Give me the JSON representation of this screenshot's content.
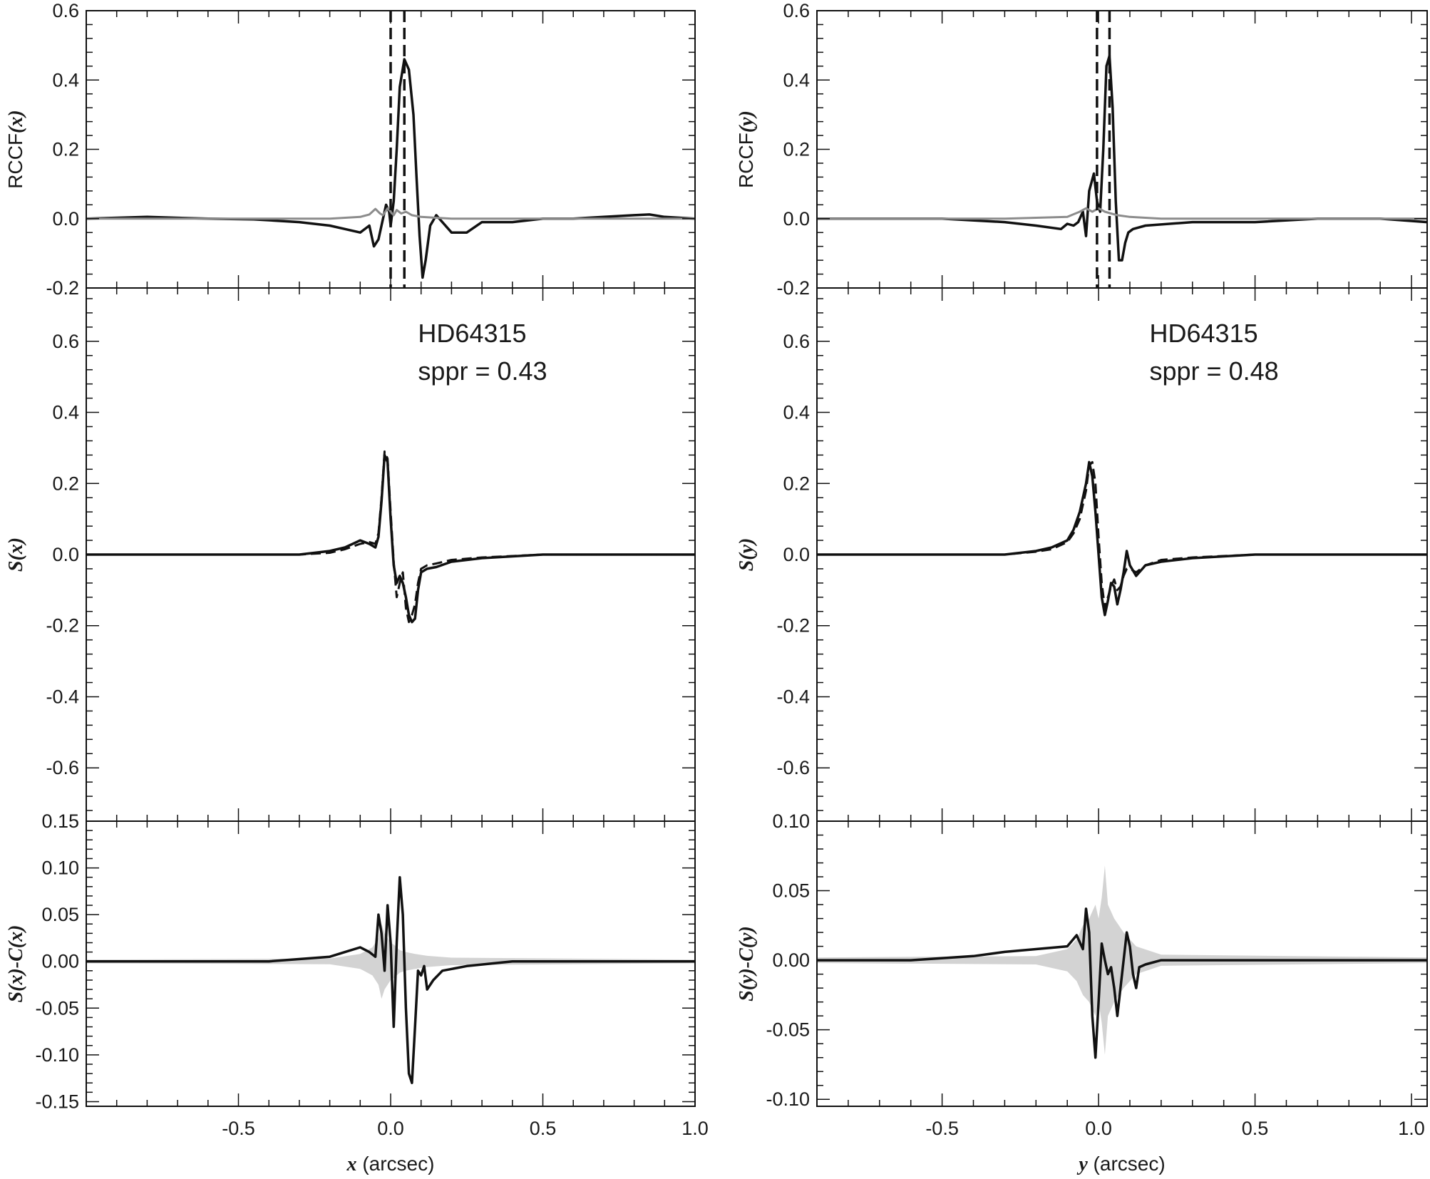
{
  "chart_data": [
    {
      "type": "line",
      "panel": "left-top",
      "ylabel": "RCCF(x)",
      "xlim": [
        -1.0,
        1.0
      ],
      "ylim": [
        -0.2,
        0.6
      ],
      "yticks": [
        -0.2,
        0.0,
        0.2,
        0.4,
        0.6
      ],
      "ytick_labels": [
        "-0.2",
        "0.0",
        "0.2",
        "0.4",
        "0.6"
      ],
      "grid": false,
      "series": [
        {
          "style": "solid-black",
          "x": [
            -1.0,
            -0.8,
            -0.6,
            -0.45,
            -0.3,
            -0.2,
            -0.15,
            -0.1,
            -0.07,
            -0.055,
            -0.04,
            -0.025,
            -0.015,
            -0.005,
            0.0,
            0.01,
            0.02,
            0.03,
            0.045,
            0.06,
            0.075,
            0.085,
            0.095,
            0.105,
            0.115,
            0.13,
            0.15,
            0.2,
            0.25,
            0.3,
            0.4,
            0.5,
            0.6,
            0.7,
            0.8,
            0.85,
            0.9,
            1.0
          ],
          "y": [
            0.0,
            0.005,
            0.0,
            -0.002,
            -0.01,
            -0.02,
            -0.03,
            -0.04,
            -0.02,
            -0.08,
            -0.06,
            0.0,
            0.04,
            0.02,
            -0.02,
            0.05,
            0.2,
            0.38,
            0.46,
            0.43,
            0.3,
            0.12,
            -0.05,
            -0.17,
            -0.12,
            -0.02,
            0.01,
            -0.04,
            -0.04,
            -0.01,
            -0.01,
            0.0,
            0.0,
            0.005,
            0.01,
            0.012,
            0.005,
            0.0
          ]
        },
        {
          "style": "solid-gray",
          "x": [
            -1.0,
            -0.5,
            -0.2,
            -0.1,
            -0.07,
            -0.05,
            -0.035,
            -0.025,
            -0.01,
            0.0,
            0.01,
            0.02,
            0.035,
            0.05,
            0.07,
            0.1,
            0.2,
            0.5,
            1.0
          ],
          "y": [
            0.0,
            0.0,
            0.0,
            0.005,
            0.012,
            0.028,
            0.015,
            0.01,
            0.03,
            0.02,
            0.01,
            0.025,
            0.015,
            0.02,
            0.01,
            0.005,
            0.0,
            0.0,
            0.0
          ]
        }
      ],
      "vlines": [
        0.0,
        0.045
      ]
    },
    {
      "type": "line",
      "panel": "left-middle",
      "ylabel": "S(x)",
      "xlim": [
        -1.0,
        1.0
      ],
      "ylim": [
        -0.75,
        0.75
      ],
      "yticks": [
        -0.6,
        -0.4,
        -0.2,
        0.0,
        0.2,
        0.4,
        0.6
      ],
      "ytick_labels": [
        "-0.6",
        "-0.4",
        "-0.2",
        "0.0",
        "0.2",
        "0.4",
        "0.6"
      ],
      "annotation": [
        "HD64315",
        "sppr = 0.43"
      ],
      "grid": false,
      "series": [
        {
          "style": "solid",
          "x": [
            -1.0,
            -0.5,
            -0.3,
            -0.2,
            -0.15,
            -0.1,
            -0.07,
            -0.05,
            -0.04,
            -0.03,
            -0.02,
            -0.01,
            0.0,
            0.01,
            0.02,
            0.03,
            0.04,
            0.05,
            0.06,
            0.07,
            0.08,
            0.09,
            0.1,
            0.12,
            0.15,
            0.2,
            0.3,
            0.5,
            1.0
          ],
          "y": [
            0.0,
            0.0,
            0.0,
            0.01,
            0.02,
            0.04,
            0.03,
            0.02,
            0.05,
            0.15,
            0.28,
            0.26,
            0.1,
            -0.03,
            -0.08,
            -0.06,
            -0.08,
            -0.12,
            -0.17,
            -0.19,
            -0.18,
            -0.1,
            -0.05,
            -0.04,
            -0.035,
            -0.02,
            -0.01,
            0.0,
            0.0
          ]
        },
        {
          "style": "dashed",
          "x": [
            -1.0,
            -0.5,
            -0.3,
            -0.2,
            -0.15,
            -0.1,
            -0.07,
            -0.05,
            -0.04,
            -0.03,
            -0.02,
            -0.01,
            0.0,
            0.01,
            0.02,
            0.03,
            0.04,
            0.05,
            0.06,
            0.07,
            0.08,
            0.09,
            0.1,
            0.12,
            0.15,
            0.2,
            0.3,
            0.5,
            1.0
          ],
          "y": [
            0.0,
            0.0,
            0.0,
            0.005,
            0.015,
            0.03,
            0.035,
            0.03,
            0.06,
            0.16,
            0.29,
            0.27,
            0.12,
            -0.02,
            -0.12,
            -0.08,
            -0.05,
            -0.15,
            -0.19,
            -0.17,
            -0.14,
            -0.08,
            -0.04,
            -0.03,
            -0.025,
            -0.015,
            -0.008,
            0.0,
            0.0
          ]
        }
      ]
    },
    {
      "type": "line",
      "panel": "left-bottom",
      "ylabel": "S(x)-C(x)",
      "xlim": [
        -1.0,
        1.0
      ],
      "ylim": [
        -0.155,
        0.15
      ],
      "yticks": [
        -0.15,
        -0.1,
        -0.05,
        0.0,
        0.05,
        0.1,
        0.15
      ],
      "ytick_labels": [
        "-0.15",
        "-0.10",
        "-0.05",
        "0.00",
        "0.05",
        "0.10",
        "0.15"
      ],
      "xticks": [
        -0.5,
        0.0,
        0.5,
        1.0
      ],
      "xtick_labels": [
        "-0.5",
        "0.0",
        "0.5",
        "1.0"
      ],
      "xlabel_var": "x",
      "xlabel_unit": "(arcsec)",
      "grid": false,
      "series": [
        {
          "style": "solid",
          "x": [
            -1.0,
            -0.6,
            -0.4,
            -0.2,
            -0.15,
            -0.1,
            -0.07,
            -0.05,
            -0.04,
            -0.03,
            -0.02,
            -0.01,
            0.0,
            0.01,
            0.02,
            0.03,
            0.04,
            0.05,
            0.06,
            0.07,
            0.08,
            0.09,
            0.1,
            0.11,
            0.12,
            0.14,
            0.17,
            0.25,
            0.4,
            0.6,
            0.8,
            1.0
          ],
          "y": [
            0.0,
            0.0,
            0.0,
            0.005,
            0.01,
            0.015,
            0.01,
            0.005,
            0.05,
            0.03,
            -0.01,
            0.06,
            0.02,
            -0.07,
            0.02,
            0.09,
            0.05,
            -0.05,
            -0.12,
            -0.13,
            -0.07,
            -0.01,
            -0.015,
            -0.005,
            -0.03,
            -0.02,
            -0.01,
            -0.005,
            0.0,
            0.0,
            0.0,
            0.0
          ]
        },
        {
          "style": "gray-band",
          "x": [
            -1.0,
            -0.2,
            -0.1,
            -0.06,
            -0.04,
            -0.03,
            -0.02,
            -0.01,
            0.0,
            0.01,
            0.02,
            0.03,
            0.05,
            0.08,
            0.12,
            0.2,
            1.0
          ],
          "y": [
            0.002,
            0.003,
            0.008,
            0.015,
            0.025,
            0.04,
            0.03,
            0.025,
            0.02,
            0.018,
            0.015,
            0.012,
            0.01,
            0.008,
            0.006,
            0.004,
            0.002
          ]
        }
      ]
    },
    {
      "type": "line",
      "panel": "right-top",
      "ylabel": "RCCF(y)",
      "xlim": [
        -0.9,
        1.05
      ],
      "ylim": [
        -0.2,
        0.6
      ],
      "yticks": [
        -0.2,
        0.0,
        0.2,
        0.4,
        0.6
      ],
      "ytick_labels": [
        "-0.2",
        "0.0",
        "0.2",
        "0.4",
        "0.6"
      ],
      "grid": false,
      "series": [
        {
          "style": "solid-black",
          "x": [
            -0.9,
            -0.7,
            -0.5,
            -0.3,
            -0.2,
            -0.12,
            -0.1,
            -0.08,
            -0.065,
            -0.05,
            -0.04,
            -0.03,
            -0.015,
            -0.005,
            0.005,
            0.015,
            0.025,
            0.035,
            0.045,
            0.055,
            0.065,
            0.075,
            0.085,
            0.095,
            0.11,
            0.15,
            0.3,
            0.5,
            0.7,
            0.9,
            1.05
          ],
          "y": [
            0.0,
            0.0,
            0.0,
            -0.01,
            -0.02,
            -0.03,
            -0.015,
            -0.02,
            -0.01,
            0.02,
            -0.05,
            0.08,
            0.13,
            0.05,
            0.02,
            0.2,
            0.44,
            0.47,
            0.32,
            0.05,
            -0.12,
            -0.12,
            -0.07,
            -0.04,
            -0.03,
            -0.02,
            -0.01,
            -0.01,
            0.0,
            0.0,
            -0.01
          ]
        },
        {
          "style": "solid-gray",
          "x": [
            -0.9,
            -0.3,
            -0.1,
            -0.06,
            -0.04,
            -0.02,
            0.0,
            0.02,
            0.04,
            0.06,
            0.1,
            0.2,
            0.5,
            1.05
          ],
          "y": [
            0.0,
            0.0,
            0.005,
            0.02,
            0.03,
            0.02,
            0.03,
            0.02,
            0.015,
            0.01,
            0.005,
            0.0,
            0.0,
            0.0
          ]
        }
      ],
      "vlines": [
        -0.005,
        0.035
      ]
    },
    {
      "type": "line",
      "panel": "right-middle",
      "ylabel": "S(y)",
      "xlim": [
        -0.9,
        1.05
      ],
      "ylim": [
        -0.75,
        0.75
      ],
      "yticks": [
        -0.6,
        -0.4,
        -0.2,
        0.0,
        0.2,
        0.4,
        0.6
      ],
      "ytick_labels": [
        "-0.6",
        "-0.4",
        "-0.2",
        "0.0",
        "0.2",
        "0.4",
        "0.6"
      ],
      "annotation": [
        "HD64315",
        "sppr = 0.48"
      ],
      "grid": false,
      "series": [
        {
          "style": "solid",
          "x": [
            -0.9,
            -0.5,
            -0.3,
            -0.2,
            -0.15,
            -0.1,
            -0.08,
            -0.06,
            -0.04,
            -0.03,
            -0.02,
            -0.01,
            0.0,
            0.01,
            0.02,
            0.03,
            0.04,
            0.05,
            0.06,
            0.07,
            0.08,
            0.09,
            0.1,
            0.12,
            0.15,
            0.2,
            0.3,
            0.5,
            1.05
          ],
          "y": [
            0.0,
            0.0,
            0.0,
            0.01,
            0.02,
            0.04,
            0.07,
            0.12,
            0.2,
            0.26,
            0.22,
            0.12,
            0.0,
            -0.12,
            -0.17,
            -0.13,
            -0.08,
            -0.09,
            -0.14,
            -0.1,
            -0.05,
            0.01,
            -0.03,
            -0.06,
            -0.03,
            -0.02,
            -0.01,
            0.0,
            0.0
          ]
        },
        {
          "style": "dashed",
          "x": [
            -0.9,
            -0.5,
            -0.3,
            -0.2,
            -0.15,
            -0.1,
            -0.08,
            -0.06,
            -0.04,
            -0.03,
            -0.02,
            -0.01,
            0.0,
            0.01,
            0.02,
            0.03,
            0.04,
            0.05,
            0.06,
            0.07,
            0.08,
            0.09,
            0.1,
            0.12,
            0.15,
            0.2,
            0.3,
            0.5,
            1.05
          ],
          "y": [
            0.0,
            0.0,
            0.0,
            0.008,
            0.015,
            0.035,
            0.06,
            0.1,
            0.18,
            0.25,
            0.26,
            0.2,
            0.05,
            -0.08,
            -0.15,
            -0.12,
            -0.09,
            -0.07,
            -0.1,
            -0.09,
            -0.06,
            -0.04,
            -0.04,
            -0.05,
            -0.03,
            -0.015,
            -0.008,
            0.0,
            0.0
          ]
        }
      ]
    },
    {
      "type": "line",
      "panel": "right-bottom",
      "ylabel": "S(y)-C(y)",
      "xlim": [
        -0.9,
        1.05
      ],
      "ylim": [
        -0.105,
        0.1
      ],
      "yticks": [
        -0.1,
        -0.05,
        0.0,
        0.05,
        0.1
      ],
      "ytick_labels": [
        "-0.10",
        "-0.05",
        "0.00",
        "0.05",
        "0.10"
      ],
      "xticks": [
        -0.5,
        0.0,
        0.5,
        1.0
      ],
      "xtick_labels": [
        "-0.5",
        "0.0",
        "0.5",
        "1.0"
      ],
      "xlabel_var": "y",
      "xlabel_unit": "(arcsec)",
      "grid": false,
      "series": [
        {
          "style": "solid",
          "x": [
            -0.9,
            -0.6,
            -0.4,
            -0.3,
            -0.2,
            -0.1,
            -0.07,
            -0.05,
            -0.04,
            -0.03,
            -0.02,
            -0.01,
            0.0,
            0.01,
            0.02,
            0.03,
            0.04,
            0.05,
            0.06,
            0.07,
            0.08,
            0.09,
            0.1,
            0.11,
            0.12,
            0.13,
            0.15,
            0.2,
            0.3,
            0.5,
            0.8,
            1.05
          ],
          "y": [
            0.0,
            0.0,
            0.003,
            0.006,
            0.008,
            0.01,
            0.018,
            0.008,
            0.037,
            0.02,
            -0.04,
            -0.07,
            -0.03,
            0.012,
            0.0,
            -0.01,
            -0.005,
            -0.02,
            -0.04,
            -0.02,
            0.0,
            0.02,
            0.01,
            -0.01,
            -0.02,
            -0.005,
            -0.003,
            0.0,
            0.0,
            0.0,
            0.0,
            0.0
          ]
        },
        {
          "style": "gray-band",
          "x": [
            -0.9,
            -0.2,
            -0.1,
            -0.07,
            -0.05,
            -0.03,
            -0.02,
            -0.01,
            0.0,
            0.01,
            0.02,
            0.03,
            0.05,
            0.08,
            0.12,
            0.2,
            1.05
          ],
          "y": [
            0.002,
            0.003,
            0.008,
            0.015,
            0.025,
            0.03,
            0.035,
            0.04,
            0.03,
            0.045,
            0.068,
            0.04,
            0.03,
            0.02,
            0.01,
            0.004,
            0.002
          ]
        }
      ]
    }
  ]
}
